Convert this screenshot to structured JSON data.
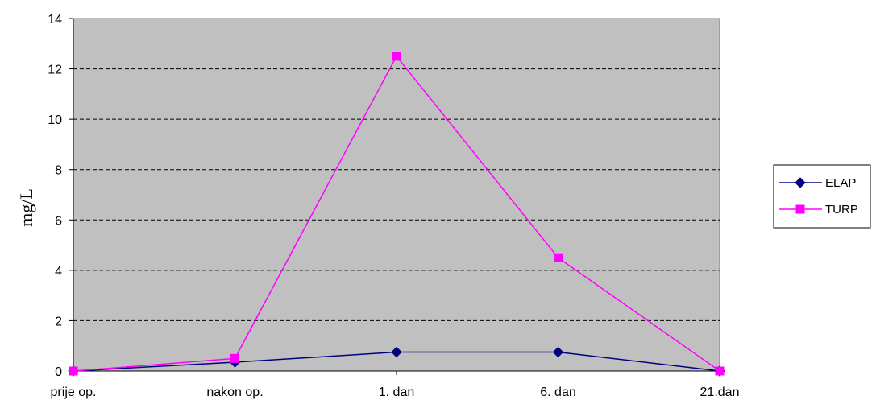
{
  "chart_data": {
    "type": "line",
    "categories": [
      "prije op.",
      "nakon op.",
      "1. dan",
      "6. dan",
      "21.dan"
    ],
    "series": [
      {
        "name": "ELAP",
        "values": [
          0,
          0.35,
          0.75,
          0.75,
          0
        ],
        "color": "#000080",
        "marker": "diamond"
      },
      {
        "name": "TURP",
        "values": [
          0,
          0.5,
          12.5,
          4.5,
          0
        ],
        "color": "#ff00ff",
        "marker": "square"
      }
    ],
    "title": "",
    "xlabel": "",
    "ylabel": "mg/L",
    "ylim": [
      0,
      14
    ],
    "yticks": [
      0,
      2,
      4,
      6,
      8,
      10,
      12,
      14
    ],
    "grid": true,
    "plot_background": "#c0c0c0",
    "legend_position": "right"
  }
}
